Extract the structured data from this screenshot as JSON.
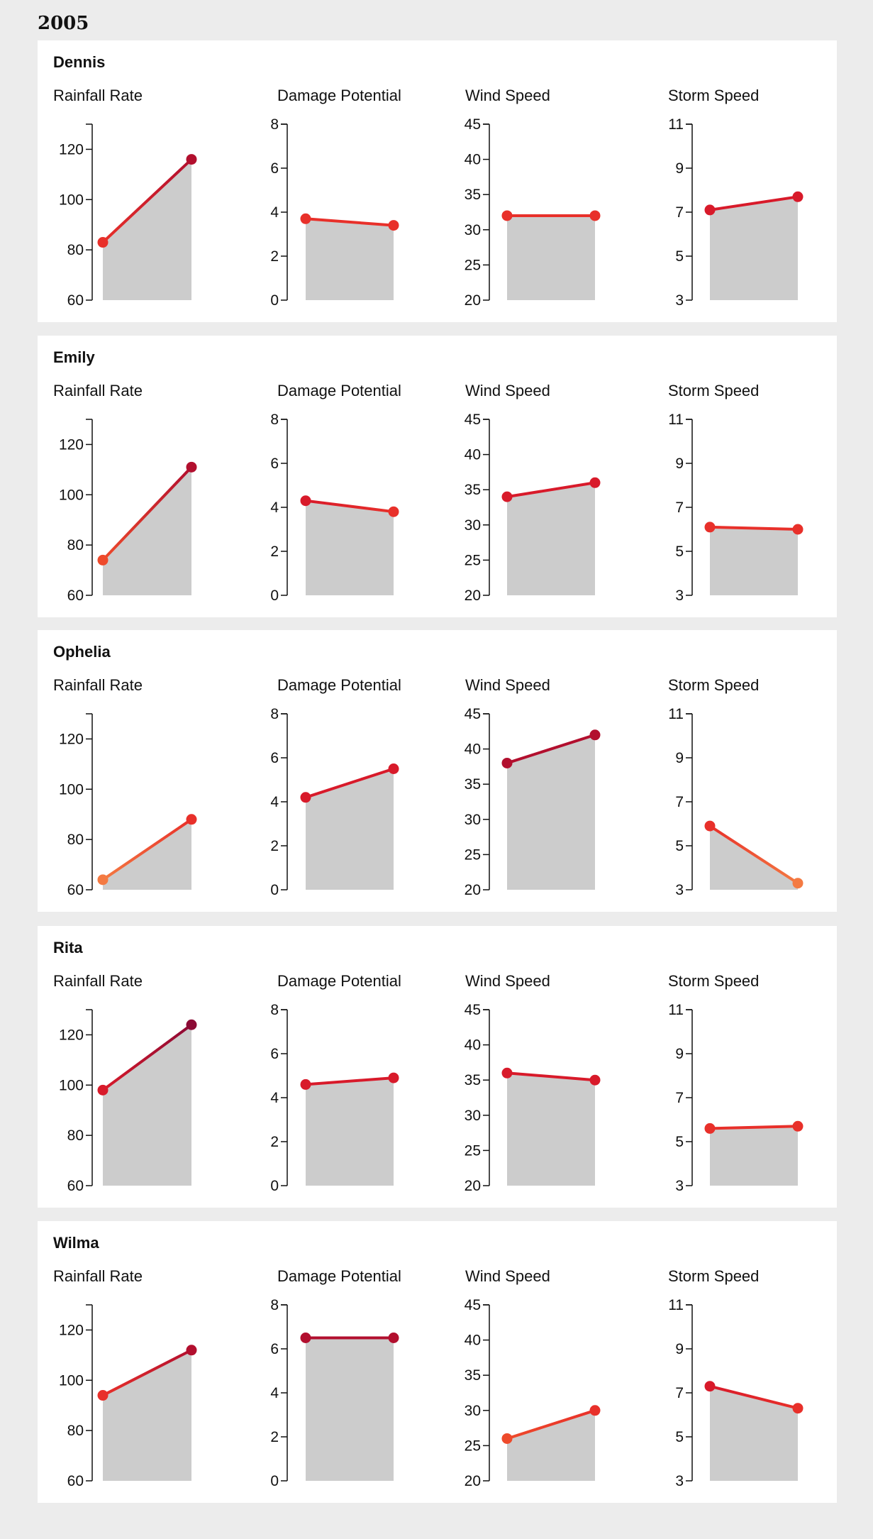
{
  "page": {
    "year": "2005"
  },
  "colors": {
    "area": "#cccccc",
    "axis": "#111111",
    "scale": [
      "#f47a42",
      "#ee4a2b",
      "#e8302a",
      "#d81a2a",
      "#b20f2e",
      "#8c0a35"
    ]
  },
  "metrics": [
    {
      "key": "rain",
      "label": "Rainfall Rate",
      "ylim": [
        60,
        130
      ],
      "ticks": [
        60,
        80,
        100,
        120
      ]
    },
    {
      "key": "damage",
      "label": "Damage Potential",
      "ylim": [
        0,
        8
      ],
      "ticks": [
        0,
        2,
        4,
        6,
        8
      ]
    },
    {
      "key": "wind",
      "label": "Wind Speed",
      "ylim": [
        20,
        45
      ],
      "ticks": [
        20,
        25,
        30,
        35,
        40,
        45
      ]
    },
    {
      "key": "storm",
      "label": "Storm Speed",
      "ylim": [
        3,
        11
      ],
      "ticks": [
        3,
        5,
        7,
        9,
        11
      ]
    }
  ],
  "chart_data": [
    {
      "type": "area",
      "storm": "Dennis",
      "values": {
        "rain": [
          83,
          116
        ],
        "damage": [
          3.7,
          3.4
        ],
        "wind": [
          32,
          32
        ],
        "storm": [
          7.1,
          7.7
        ]
      }
    },
    {
      "type": "area",
      "storm": "Emily",
      "values": {
        "rain": [
          74,
          111
        ],
        "damage": [
          4.3,
          3.8
        ],
        "wind": [
          34,
          36
        ],
        "storm": [
          6.1,
          6.0
        ]
      }
    },
    {
      "type": "area",
      "storm": "Ophelia",
      "values": {
        "rain": [
          64,
          88
        ],
        "damage": [
          4.2,
          5.5
        ],
        "wind": [
          38,
          42
        ],
        "storm": [
          5.9,
          3.3
        ]
      }
    },
    {
      "type": "area",
      "storm": "Rita",
      "values": {
        "rain": [
          98,
          124
        ],
        "damage": [
          4.6,
          4.9
        ],
        "wind": [
          36,
          35
        ],
        "storm": [
          5.6,
          5.7
        ]
      }
    },
    {
      "type": "area",
      "storm": "Wilma",
      "values": {
        "rain": [
          94,
          112
        ],
        "damage": [
          6.5,
          6.5
        ],
        "wind": [
          26,
          30
        ],
        "storm": [
          7.3,
          6.3
        ]
      }
    }
  ]
}
